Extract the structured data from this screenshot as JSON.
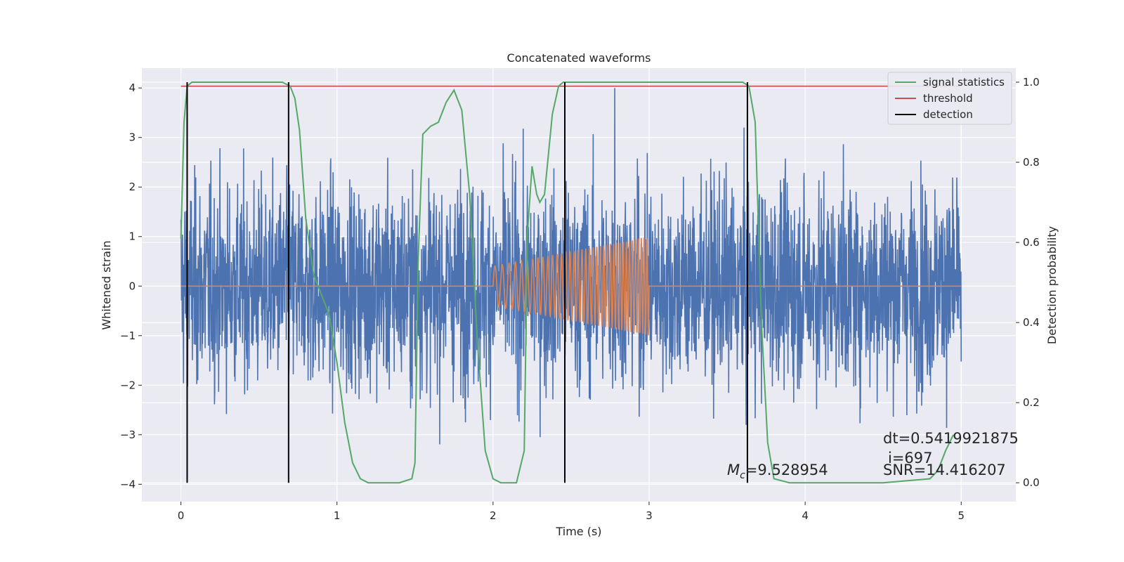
{
  "chart_data": {
    "type": "line",
    "title": "Concatenated waveforms",
    "xlabel": "Time (s)",
    "ylabel": "Whitened strain",
    "y2label": "Detection probability",
    "xlim": [
      -0.25,
      5.35
    ],
    "ylim": [
      -4.35,
      4.4
    ],
    "y2lim": [
      -0.047,
      1.035
    ],
    "xticks": [
      0,
      1,
      2,
      3,
      4,
      5
    ],
    "xtick_labels": [
      "0",
      "1",
      "2",
      "3",
      "4",
      "5"
    ],
    "yticks": [
      -4,
      -3,
      -2,
      -1,
      0,
      1,
      2,
      3,
      4
    ],
    "ytick_labels": [
      "−4",
      "−3",
      "−2",
      "−1",
      "0",
      "1",
      "2",
      "3",
      "4"
    ],
    "y2ticks": [
      0.0,
      0.2,
      0.4,
      0.6,
      0.8,
      1.0
    ],
    "y2tick_labels": [
      "0.0",
      "0.2",
      "0.4",
      "0.6",
      "0.8",
      "1.0"
    ],
    "grid": true,
    "legend_position": "top-right",
    "series": [
      {
        "name": "signal statistics",
        "axis": "right",
        "color": "#55a868",
        "x": [
          0.0,
          0.02,
          0.04,
          0.07,
          0.1,
          0.2,
          0.4,
          0.6,
          0.65,
          0.7,
          0.73,
          0.76,
          0.8,
          0.85,
          0.9,
          0.95,
          1.0,
          1.05,
          1.1,
          1.15,
          1.2,
          1.3,
          1.4,
          1.48,
          1.5,
          1.52,
          1.55,
          1.6,
          1.65,
          1.7,
          1.75,
          1.8,
          1.85,
          1.9,
          1.95,
          2.0,
          2.05,
          2.1,
          2.15,
          2.2,
          2.22,
          2.25,
          2.28,
          2.3,
          2.33,
          2.38,
          2.42,
          2.45,
          2.5,
          2.55,
          2.6,
          2.8,
          3.0,
          3.3,
          3.6,
          3.64,
          3.68,
          3.72,
          3.76,
          3.8,
          3.9,
          4.2,
          4.5,
          4.8,
          4.85,
          4.9,
          4.95
        ],
        "values": [
          0.61,
          0.9,
          0.99,
          1.0,
          1.0,
          1.0,
          1.0,
          1.0,
          1.0,
          0.99,
          0.96,
          0.88,
          0.66,
          0.52,
          0.47,
          0.42,
          0.3,
          0.15,
          0.05,
          0.01,
          0.0,
          0.0,
          0.0,
          0.01,
          0.05,
          0.55,
          0.87,
          0.89,
          0.9,
          0.95,
          0.98,
          0.93,
          0.72,
          0.35,
          0.08,
          0.01,
          0.0,
          0.0,
          0.0,
          0.08,
          0.62,
          0.79,
          0.72,
          0.7,
          0.72,
          0.92,
          0.99,
          1.0,
          1.0,
          1.0,
          1.0,
          1.0,
          1.0,
          1.0,
          1.0,
          0.99,
          0.9,
          0.4,
          0.1,
          0.01,
          0.0,
          0.0,
          0.0,
          0.01,
          0.03,
          0.08,
          0.12
        ]
      },
      {
        "name": "threshold",
        "axis": "right",
        "color": "#c44e52",
        "x": [
          0.0,
          5.0
        ],
        "values": [
          0.99,
          0.99
        ]
      },
      {
        "name": "detection",
        "axis": "right",
        "type": "vline",
        "color": "#000000",
        "x": [
          0.04,
          0.69,
          2.46,
          3.63
        ],
        "range": [
          0.0,
          1.0
        ]
      },
      {
        "axis": "left",
        "type": "noise",
        "color": "#4c72b0",
        "x_range": [
          0.0,
          5.0
        ],
        "amplitude": 2.4,
        "peak": 4.0
      },
      {
        "axis": "left",
        "type": "chirp",
        "color": "#dd8452",
        "x": [
          0.0,
          2.0,
          3.0,
          5.0
        ],
        "chirp_start": 2.0,
        "chirp_end": 3.0,
        "amplitude_start": 0.4,
        "amplitude_end": 1.0,
        "baseline": 0.0
      }
    ],
    "annotations": {
      "mc_label": "M",
      "mc_sub": "c",
      "mc_value": "=9.528954",
      "dt": "dt=0.5419921875",
      "i": "i=697",
      "snr": "SNR=14.416207"
    },
    "colors": {
      "axes_bg": "#eaeaf2",
      "grid": "#ffffff",
      "noise": "#4c72b0",
      "chirp": "#dd8452",
      "signal": "#55a868",
      "threshold": "#c44e52",
      "detection": "#000000"
    }
  }
}
